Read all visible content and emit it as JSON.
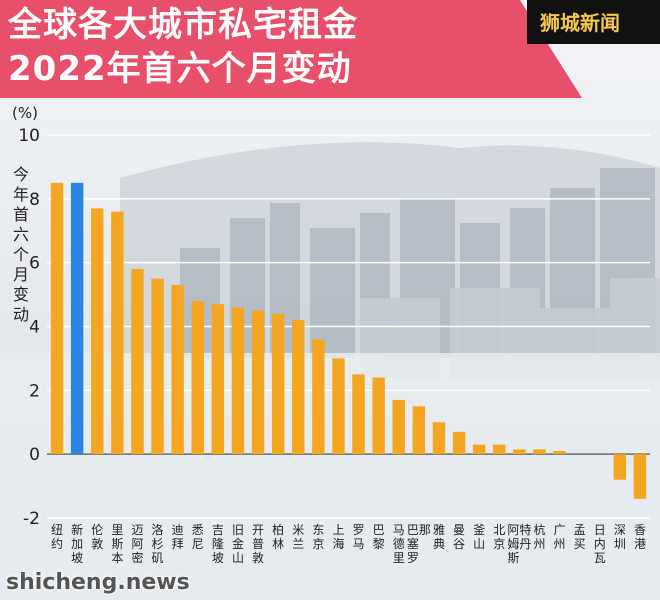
{
  "title": {
    "line1": "全球各大城市私宅租金",
    "line2": "2022年首六个月变动"
  },
  "brand": "狮城新闻",
  "watermark": "shicheng.news",
  "chart_data": {
    "type": "bar",
    "unit": "(%)",
    "ylabel": "今年首六个月变动",
    "ylim": [
      -2,
      10
    ],
    "yticks": [
      -2,
      0,
      2,
      4,
      6,
      8,
      10
    ],
    "grid": true,
    "categories": [
      "纽约",
      "新加坡",
      "伦敦",
      "里斯本",
      "迈阿密",
      "洛杉矶",
      "迪拜",
      "悉尼",
      "吉隆坡",
      "旧金山",
      "开普敦",
      "柏林",
      "米兰",
      "东京",
      "上海",
      "罗马",
      "巴黎",
      "马德里",
      "巴塞罗那",
      "雅典",
      "曼谷",
      "釜山",
      "北京",
      "阿姆斯特丹",
      "杭州",
      "广州",
      "孟买",
      "日内瓦",
      "深圳",
      "香港"
    ],
    "values": [
      8.5,
      8.5,
      7.7,
      7.6,
      5.8,
      5.5,
      5.3,
      4.8,
      4.7,
      4.6,
      4.5,
      4.4,
      4.2,
      3.6,
      3.0,
      2.5,
      2.4,
      1.7,
      1.5,
      1.0,
      0.7,
      0.3,
      0.3,
      0.15,
      0.15,
      0.1,
      0.0,
      0.0,
      -0.8,
      -1.4
    ],
    "highlight": "新加坡",
    "colors": {
      "bar": "#f4a622",
      "highlight": "#2b86e0"
    }
  }
}
